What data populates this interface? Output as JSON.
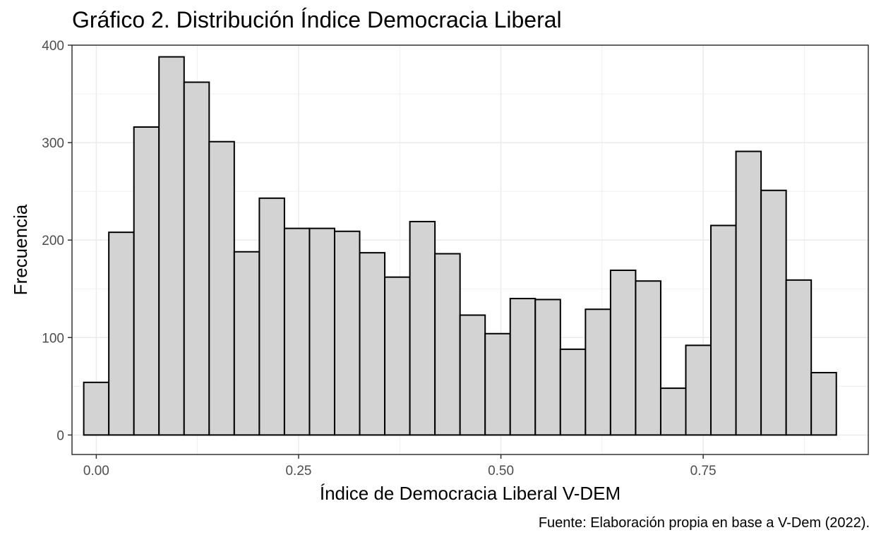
{
  "chart_data": {
    "type": "bar",
    "title": "Gráfico 2. Distribución Índice Democracia Liberal",
    "caption": "Fuente: Elaboración propia en base a V-Dem (2022).",
    "xlabel": "Índice de Democracia Liberal V-DEM",
    "ylabel": "Frecuencia",
    "xlim": [
      -0.03,
      0.954
    ],
    "ylim": [
      -20,
      400
    ],
    "x_ticks": [
      0.0,
      0.25,
      0.5,
      0.75
    ],
    "x_tick_labels": [
      "0.00",
      "0.25",
      "0.50",
      "0.75"
    ],
    "y_ticks": [
      0,
      100,
      200,
      300,
      400
    ],
    "y_tick_labels": [
      "0",
      "100",
      "200",
      "300",
      "400"
    ],
    "bin_width": 0.031,
    "bin_start": -0.0155,
    "values": [
      54,
      208,
      316,
      388,
      362,
      301,
      188,
      243,
      212,
      212,
      209,
      187,
      162,
      219,
      186,
      123,
      104,
      140,
      139,
      88,
      129,
      169,
      158,
      48,
      92,
      215,
      291,
      251,
      159,
      64
    ],
    "bar_fill": "#d3d3d3",
    "bar_stroke": "#000000",
    "grid": true,
    "grid_color": "#ebebeb",
    "panel_border": "#333333"
  }
}
